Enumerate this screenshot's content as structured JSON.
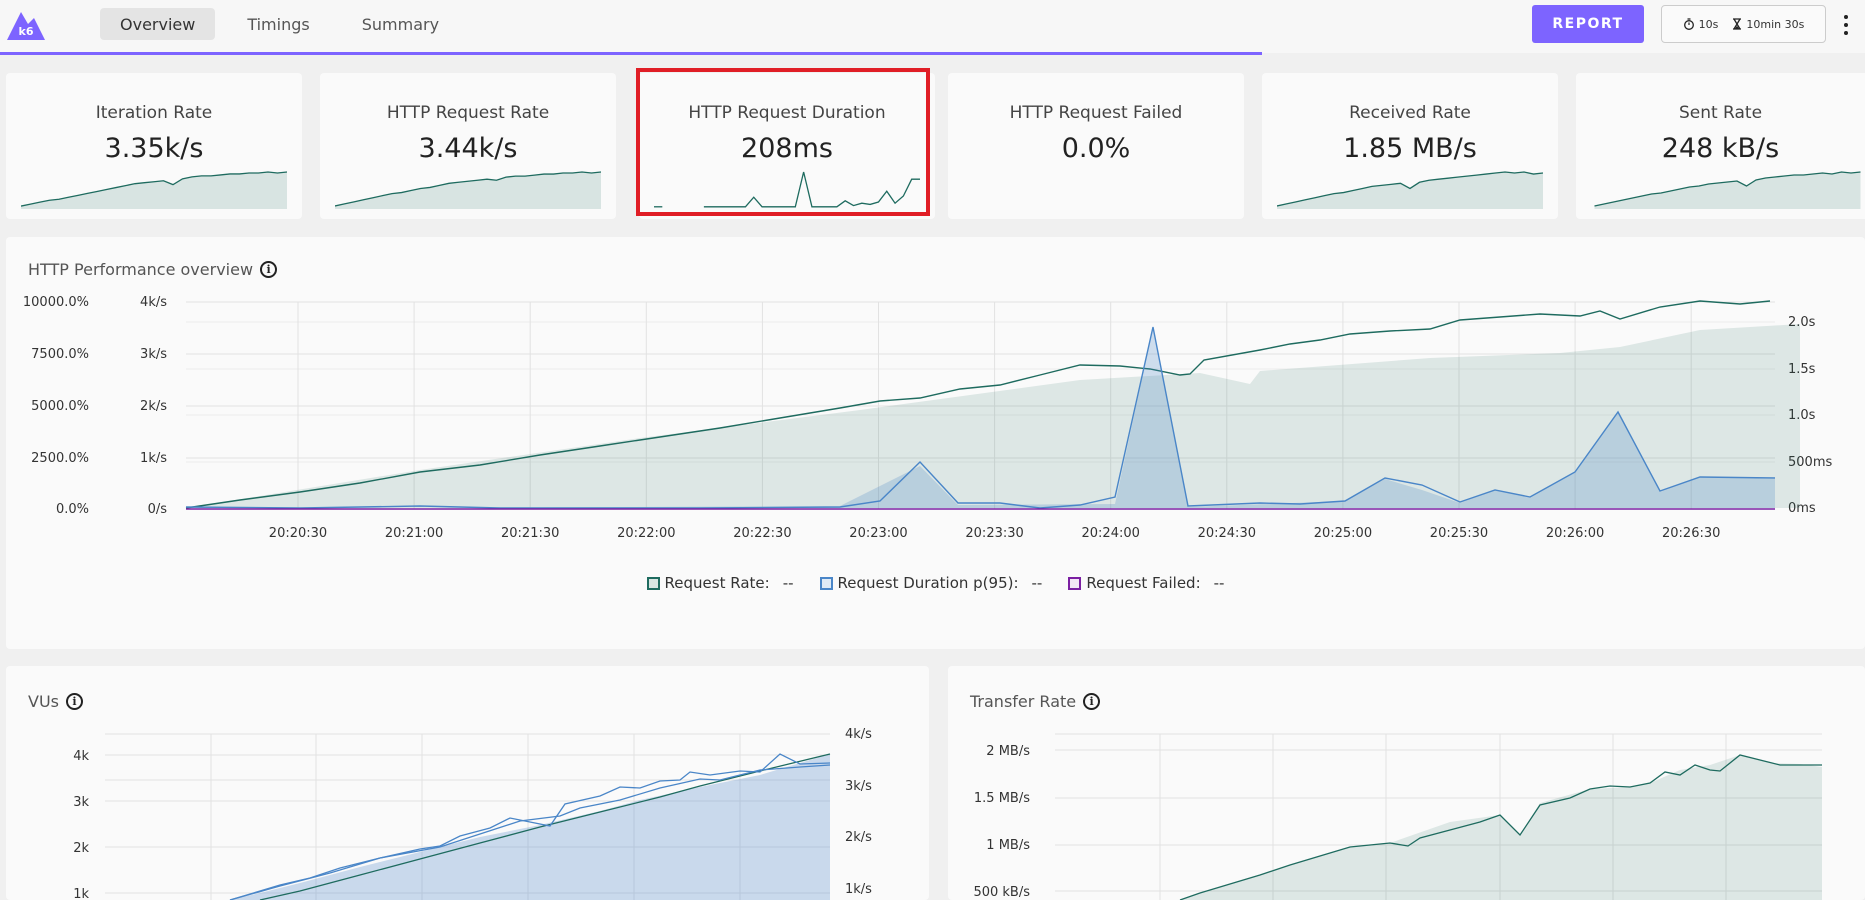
{
  "nav": {
    "tabs": [
      "Overview",
      "Timings",
      "Summary"
    ],
    "active": "Overview"
  },
  "toolbar": {
    "report_label": "REPORT",
    "refresh_interval": "10s",
    "duration": "10min 30s"
  },
  "colors": {
    "accent": "#7d64ff",
    "green": "#1e6b5f",
    "blue": "#4a86c8",
    "purple": "#7b1fa2",
    "highlight": "#e01e26"
  },
  "stats": [
    {
      "title": "Iteration Rate",
      "value": "3.35k/s",
      "spark": [
        2,
        4,
        6,
        8,
        9,
        11,
        13,
        15,
        17,
        19,
        21,
        23,
        25,
        26,
        27,
        28,
        24,
        30,
        32,
        33,
        33,
        34,
        35,
        35,
        36,
        36,
        37,
        36,
        37
      ]
    },
    {
      "title": "HTTP Request Rate",
      "value": "3.44k/s",
      "spark": [
        2,
        4,
        6,
        8,
        10,
        12,
        14,
        15,
        17,
        19,
        20,
        22,
        24,
        25,
        26,
        27,
        28,
        27,
        30,
        31,
        31,
        32,
        33,
        33,
        34,
        34,
        35,
        34,
        35
      ]
    },
    {
      "title": "HTTP Request Duration",
      "value": "208ms",
      "spark": [
        1,
        1,
        null,
        null,
        1,
        null,
        1,
        1,
        1,
        1,
        1,
        1,
        9,
        1,
        1,
        1,
        1,
        1,
        30,
        1,
        1,
        1,
        1,
        6,
        2,
        4,
        3,
        5,
        14,
        4,
        10,
        24,
        24
      ]
    },
    {
      "title": "HTTP Request Failed",
      "value": "0.0%",
      "spark": []
    },
    {
      "title": "Received Rate",
      "value": "1.85 MB/s",
      "spark": [
        2,
        4,
        6,
        8,
        10,
        12,
        14,
        15,
        17,
        19,
        21,
        22,
        23,
        24,
        19,
        25,
        27,
        28,
        29,
        30,
        31,
        32,
        33,
        34,
        35,
        34,
        35,
        33,
        34
      ]
    },
    {
      "title": "Sent Rate",
      "value": "248 kB/s",
      "spark": [
        2,
        4,
        6,
        8,
        10,
        12,
        14,
        15,
        17,
        19,
        21,
        22,
        24,
        25,
        26,
        27,
        22,
        28,
        30,
        31,
        32,
        33,
        33,
        34,
        35,
        34,
        36,
        35,
        36
      ]
    }
  ],
  "overview": {
    "title": "HTTP Performance overview",
    "left_axis_pct": [
      "10000.0%",
      "7500.0%",
      "5000.0%",
      "2500.0%",
      "0.0%"
    ],
    "left_axis_rate": [
      "4k/s",
      "3k/s",
      "2k/s",
      "1k/s",
      "0/s"
    ],
    "right_axis": [
      "2.0s",
      "1.5s",
      "1.0s",
      "500ms",
      "0ms"
    ],
    "x_ticks": [
      "20:20:30",
      "20:21:00",
      "20:21:30",
      "20:22:00",
      "20:22:30",
      "20:23:00",
      "20:23:30",
      "20:24:00",
      "20:24:30",
      "20:25:00",
      "20:25:30",
      "20:26:00",
      "20:26:30"
    ],
    "legend": [
      {
        "label": "Request Rate:",
        "value": "--",
        "color": "#1e6b5f"
      },
      {
        "label": "Request Duration p(95):",
        "value": "--",
        "color": "#4a86c8"
      },
      {
        "label": "Request Failed:",
        "value": "--",
        "color": "#7b1fa2"
      }
    ]
  },
  "vus": {
    "title": "VUs",
    "left_axis": [
      "4k",
      "3k",
      "2k",
      "1k"
    ],
    "right_axis": [
      "4k/s",
      "3k/s",
      "2k/s",
      "1k/s"
    ]
  },
  "transfer": {
    "title": "Transfer Rate",
    "left_axis": [
      "2 MB/s",
      "1.5 MB/s",
      "1 MB/s",
      "500 kB/s"
    ]
  }
}
